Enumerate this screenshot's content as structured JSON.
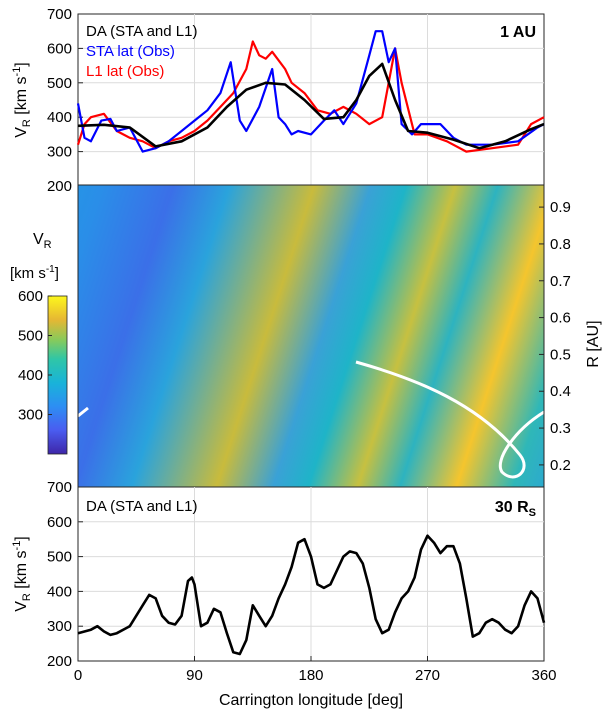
{
  "chart_data": [
    {
      "type": "line",
      "panel": "top",
      "xlim": [
        0,
        360
      ],
      "ylim": [
        200,
        700
      ],
      "yticks": [
        200,
        300,
        400,
        500,
        600,
        700
      ],
      "ylabel": "V_R [km s^-1]",
      "grid": true,
      "legend_position": "top-left",
      "annotation": "1 AU",
      "series": [
        {
          "name": "DA (STA and L1)",
          "color": "#000000",
          "x": [
            0,
            20,
            40,
            60,
            80,
            100,
            115,
            130,
            145,
            160,
            175,
            190,
            205,
            215,
            225,
            235,
            245,
            255,
            270,
            290,
            310,
            330,
            350,
            360
          ],
          "y": [
            375,
            378,
            370,
            315,
            330,
            370,
            430,
            480,
            500,
            495,
            450,
            395,
            400,
            450,
            520,
            555,
            450,
            360,
            355,
            335,
            310,
            330,
            365,
            380
          ]
        },
        {
          "name": "STA lat (Obs)",
          "color": "#0000ff",
          "x": [
            0,
            5,
            10,
            18,
            25,
            30,
            40,
            50,
            60,
            70,
            80,
            90,
            100,
            110,
            118,
            125,
            130,
            140,
            150,
            155,
            160,
            165,
            170,
            180,
            190,
            198,
            205,
            215,
            225,
            230,
            235,
            240,
            245,
            250,
            258,
            265,
            280,
            290,
            300,
            320,
            340,
            355,
            360
          ],
          "y": [
            440,
            340,
            330,
            390,
            395,
            360,
            370,
            300,
            310,
            330,
            360,
            390,
            420,
            470,
            560,
            390,
            360,
            430,
            540,
            400,
            380,
            350,
            360,
            350,
            390,
            420,
            380,
            440,
            580,
            650,
            650,
            560,
            600,
            380,
            350,
            380,
            380,
            340,
            320,
            320,
            330,
            370,
            380
          ]
        },
        {
          "name": "L1 lat (Obs)",
          "color": "#ff0000",
          "x": [
            0,
            5,
            10,
            20,
            30,
            40,
            50,
            60,
            70,
            80,
            90,
            100,
            110,
            120,
            130,
            135,
            140,
            145,
            150,
            160,
            165,
            175,
            185,
            195,
            205,
            215,
            225,
            235,
            245,
            250,
            260,
            270,
            285,
            300,
            320,
            340,
            350,
            360
          ],
          "y": [
            320,
            380,
            400,
            410,
            360,
            340,
            330,
            310,
            330,
            340,
            360,
            390,
            430,
            470,
            540,
            620,
            580,
            570,
            590,
            540,
            500,
            470,
            420,
            410,
            430,
            410,
            380,
            400,
            600,
            500,
            350,
            350,
            330,
            300,
            310,
            320,
            380,
            400
          ]
        }
      ]
    },
    {
      "type": "heatmap",
      "panel": "middle",
      "xlim": [
        0,
        360
      ],
      "rlim": [
        0.14,
        0.96
      ],
      "rticks": [
        0.2,
        0.3,
        0.4,
        0.5,
        0.6,
        0.7,
        0.8,
        0.9
      ],
      "rlabel": "R [AU]",
      "colorbar": {
        "title_line1": "V_R",
        "title_line2": "[km s^-1]",
        "min": 200,
        "max": 600,
        "ticks": [
          300,
          400,
          500,
          600
        ]
      }
    },
    {
      "type": "line",
      "panel": "bottom",
      "xlim": [
        0,
        360
      ],
      "ylim": [
        200,
        700
      ],
      "yticks": [
        200,
        300,
        400,
        500,
        600,
        700
      ],
      "xticks": [
        0,
        90,
        180,
        270,
        360
      ],
      "ylabel": "V_R [km s^-1]",
      "xlabel": "Carrington longitude [deg]",
      "grid": true,
      "legend_position": "top-left",
      "annotation": "30 R_S",
      "series": [
        {
          "name": "DA (STA and L1)",
          "color": "#000000",
          "x": [
            0,
            10,
            15,
            20,
            25,
            30,
            40,
            50,
            55,
            60,
            65,
            70,
            75,
            80,
            85,
            88,
            90,
            95,
            100,
            105,
            110,
            115,
            120,
            125,
            130,
            135,
            140,
            145,
            150,
            155,
            160,
            165,
            170,
            175,
            180,
            185,
            190,
            195,
            200,
            205,
            210,
            215,
            220,
            225,
            230,
            235,
            240,
            245,
            250,
            255,
            260,
            265,
            270,
            275,
            280,
            285,
            290,
            295,
            300,
            305,
            310,
            315,
            320,
            325,
            330,
            335,
            340,
            345,
            350,
            355,
            360
          ],
          "y": [
            280,
            290,
            300,
            285,
            275,
            280,
            300,
            360,
            390,
            380,
            330,
            310,
            305,
            330,
            430,
            440,
            420,
            300,
            310,
            350,
            340,
            280,
            225,
            220,
            260,
            360,
            330,
            300,
            330,
            380,
            420,
            470,
            540,
            550,
            500,
            420,
            410,
            420,
            460,
            500,
            515,
            510,
            480,
            410,
            320,
            280,
            290,
            340,
            380,
            400,
            440,
            520,
            560,
            540,
            510,
            530,
            530,
            480,
            380,
            270,
            280,
            310,
            320,
            310,
            290,
            280,
            300,
            360,
            400,
            380,
            310
          ]
        }
      ]
    }
  ]
}
